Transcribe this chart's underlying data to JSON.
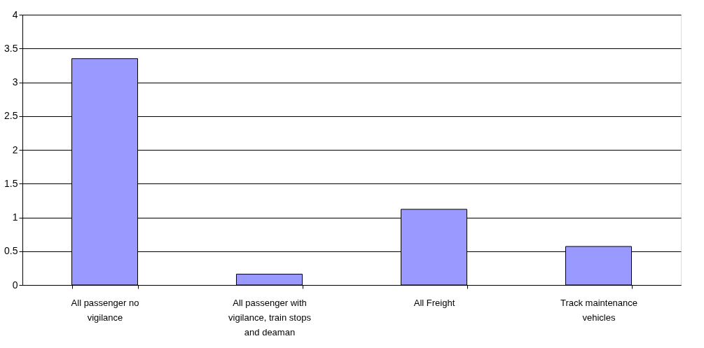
{
  "chart_data": {
    "type": "bar",
    "categories": [
      "All passenger no vigilance",
      "All passenger with vigilance, train stops and deaman",
      "All Freight",
      "Track maintenance vehicles"
    ],
    "values": [
      3.35,
      0.16,
      1.12,
      0.57
    ],
    "color": "#9999ff",
    "ylim": [
      0,
      4
    ],
    "yticks": [
      0,
      0.5,
      1,
      1.5,
      2,
      2.5,
      3,
      3.5,
      4
    ],
    "grid": "y"
  }
}
